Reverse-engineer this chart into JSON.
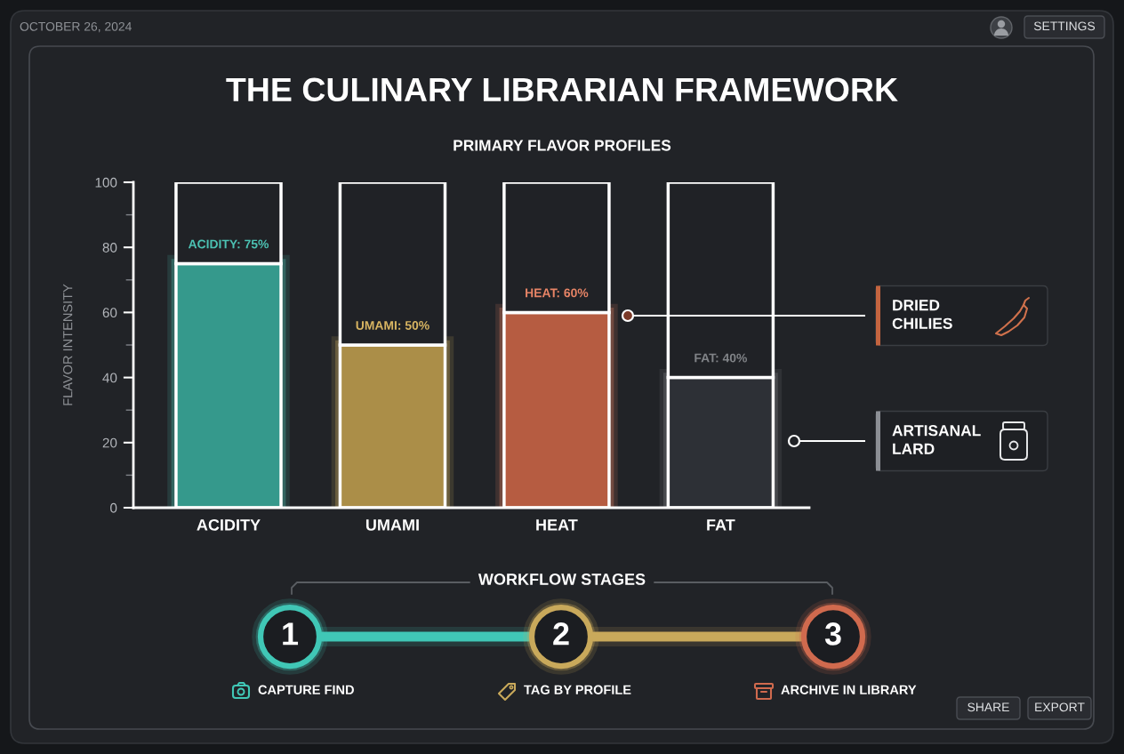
{
  "chart_data": {
    "type": "bar",
    "title": "THE CULINARY LIBRARIAN FRAMEWORK",
    "subtitle": "PRIMARY FLAVOR PROFILES",
    "ylabel": "FLAVOR INTENSITY",
    "categories": [
      "ACIDITY",
      "UMAMI",
      "HEAT",
      "FAT"
    ],
    "series": [
      {
        "values": [
          75,
          50,
          60,
          40
        ],
        "colors": [
          "#35998c",
          "#ab8e48",
          "#b65c41",
          "#2d3036"
        ],
        "value_labels": [
          "ACIDITY: 75%",
          "UMAMI: 50%",
          "HEAT: 60%",
          "FAT: 40%"
        ]
      },
      {
        "values": [
          25,
          50,
          40,
          60
        ],
        "color": "#202226"
      }
    ],
    "stacked": true,
    "ylim": [
      0,
      100
    ],
    "yticks": [
      0,
      {
        "value": 10,
        "label": null
      },
      20,
      {
        "value": 30,
        "label": null
      },
      40,
      {
        "value": 50,
        "label": null
      },
      60,
      {
        "value": 70,
        "label": null
      },
      80,
      {
        "value": 90,
        "label": null
      },
      100
    ],
    "annotations": [
      "OCTOBER 26, 2024",
      "SETTINGS",
      "WORKFLOW STAGES",
      "1",
      "2",
      "3",
      "CAPTURE FIND",
      "TAG BY PROFILE",
      "ARCHIVE IN LIBRARY",
      "SHARE",
      "EXPORT",
      "DRIED\nCHILIES",
      "ARTISANAL\nLARD"
    ]
  }
}
